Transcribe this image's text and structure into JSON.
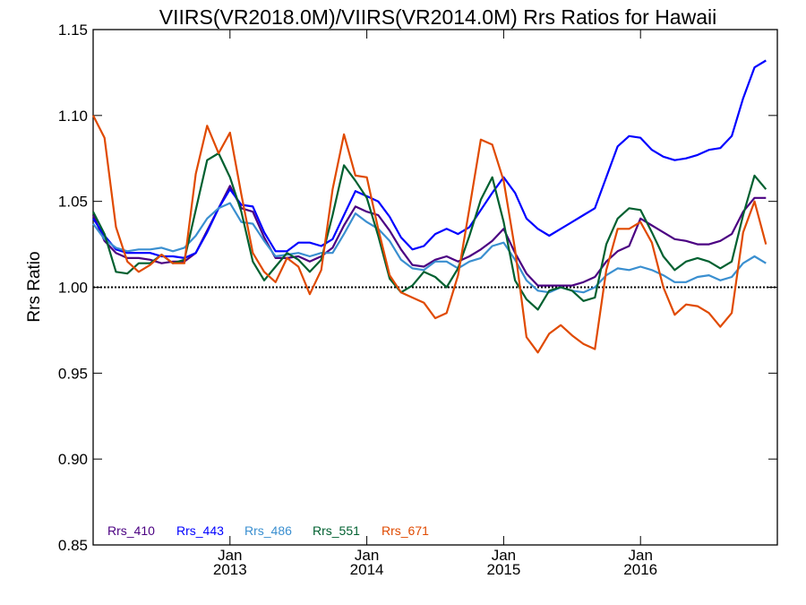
{
  "chart_data": {
    "type": "line",
    "title": "VIIRS(VR2018.0M)/VIIRS(VR2014.0M)  Rrs Ratios for Hawaii",
    "xlabel": "",
    "ylabel": "Rrs Ratio",
    "ylim": [
      0.85,
      1.15
    ],
    "yticks": [
      "0.85",
      "0.90",
      "0.95",
      "1.00",
      "1.05",
      "1.10",
      "1.15"
    ],
    "xticks": [
      {
        "month": "Jan",
        "year": "2013"
      },
      {
        "month": "Jan",
        "year": "2014"
      },
      {
        "month": "Jan",
        "year": "2015"
      },
      {
        "month": "Jan",
        "year": "2016"
      }
    ],
    "xlim": [
      "2012-01",
      "2017-01"
    ],
    "reference_line": 1.0,
    "legend_position": "bottom-left",
    "x": [
      "2012-01",
      "2012-02",
      "2012-03",
      "2012-04",
      "2012-05",
      "2012-06",
      "2012-07",
      "2012-08",
      "2012-09",
      "2012-10",
      "2012-11",
      "2012-12",
      "2013-01",
      "2013-02",
      "2013-03",
      "2013-04",
      "2013-05",
      "2013-06",
      "2013-07",
      "2013-08",
      "2013-09",
      "2013-10",
      "2013-11",
      "2013-12",
      "2014-01",
      "2014-02",
      "2014-03",
      "2014-04",
      "2014-05",
      "2014-06",
      "2014-07",
      "2014-08",
      "2014-09",
      "2014-10",
      "2014-11",
      "2014-12",
      "2015-01",
      "2015-02",
      "2015-03",
      "2015-04",
      "2015-05",
      "2015-06",
      "2015-07",
      "2015-08",
      "2015-09",
      "2015-10",
      "2015-11",
      "2015-12",
      "2016-01",
      "2016-02",
      "2016-03",
      "2016-04",
      "2016-05",
      "2016-06",
      "2016-07",
      "2016-08",
      "2016-09",
      "2016-10",
      "2016-11",
      "2016-12",
      "2017-01"
    ],
    "series": [
      {
        "name": "Rrs_410",
        "color": "#4b0082",
        "values": [
          1.042,
          1.027,
          1.02,
          1.017,
          1.017,
          1.016,
          1.014,
          1.015,
          1.015,
          1.02,
          1.033,
          1.046,
          1.059,
          1.046,
          1.044,
          1.029,
          1.017,
          1.017,
          1.018,
          1.015,
          1.018,
          1.023,
          1.036,
          1.047,
          1.044,
          1.042,
          1.033,
          1.022,
          1.013,
          1.012,
          1.016,
          1.018,
          1.015,
          1.018,
          1.022,
          1.027,
          1.034,
          1.02,
          1.008,
          1.001,
          1.001,
          1.001,
          1.001,
          1.003,
          1.006,
          1.015,
          1.021,
          1.024,
          1.04,
          1.036,
          1.032,
          1.028,
          1.027,
          1.025,
          1.025,
          1.027,
          1.031,
          1.044,
          1.052,
          1.052,
          null
        ]
      },
      {
        "name": "Rrs_443",
        "color": "#0000ff",
        "values": [
          1.04,
          1.03,
          1.022,
          1.02,
          1.02,
          1.02,
          1.018,
          1.018,
          1.017,
          1.02,
          1.032,
          1.046,
          1.057,
          1.048,
          1.047,
          1.032,
          1.021,
          1.021,
          1.026,
          1.026,
          1.024,
          1.028,
          1.042,
          1.056,
          1.053,
          1.05,
          1.041,
          1.029,
          1.022,
          1.024,
          1.031,
          1.034,
          1.031,
          1.035,
          1.045,
          1.055,
          1.064,
          1.055,
          1.04,
          1.034,
          1.03,
          1.034,
          1.038,
          1.042,
          1.046,
          1.064,
          1.082,
          1.088,
          1.087,
          1.08,
          1.076,
          1.074,
          1.075,
          1.077,
          1.08,
          1.081,
          1.088,
          1.11,
          1.128,
          1.132,
          null
        ]
      },
      {
        "name": "Rrs_486",
        "color": "#3a8fd0",
        "values": [
          1.037,
          1.028,
          1.023,
          1.021,
          1.022,
          1.022,
          1.023,
          1.021,
          1.023,
          1.03,
          1.04,
          1.046,
          1.049,
          1.038,
          1.037,
          1.027,
          1.018,
          1.019,
          1.02,
          1.018,
          1.02,
          1.02,
          1.031,
          1.043,
          1.038,
          1.034,
          1.027,
          1.016,
          1.011,
          1.01,
          1.015,
          1.015,
          1.011,
          1.015,
          1.017,
          1.024,
          1.026,
          1.016,
          1.004,
          0.998,
          0.997,
          1.0,
          0.998,
          0.997,
          1.0,
          1.007,
          1.011,
          1.01,
          1.012,
          1.01,
          1.007,
          1.003,
          1.003,
          1.006,
          1.007,
          1.004,
          1.006,
          1.014,
          1.018,
          1.014,
          null
        ]
      },
      {
        "name": "Rrs_551",
        "color": "#006030",
        "values": [
          1.044,
          1.031,
          1.009,
          1.008,
          1.014,
          1.014,
          1.019,
          1.014,
          1.016,
          1.045,
          1.074,
          1.078,
          1.064,
          1.044,
          1.015,
          1.004,
          1.012,
          1.02,
          1.016,
          1.009,
          1.016,
          1.042,
          1.071,
          1.062,
          1.052,
          1.03,
          1.005,
          0.997,
          1.001,
          1.009,
          1.006,
          1.0,
          1.011,
          1.03,
          1.051,
          1.064,
          1.038,
          1.004,
          0.993,
          0.987,
          0.998,
          1.0,
          0.998,
          0.992,
          0.994,
          1.025,
          1.04,
          1.046,
          1.045,
          1.032,
          1.018,
          1.01,
          1.015,
          1.017,
          1.015,
          1.011,
          1.015,
          1.042,
          1.065,
          1.057,
          null
        ]
      },
      {
        "name": "Rrs_671",
        "color": "#e04a00",
        "values": [
          1.1,
          1.087,
          1.035,
          1.015,
          1.009,
          1.013,
          1.019,
          1.014,
          1.014,
          1.066,
          1.094,
          1.078,
          1.09,
          1.054,
          1.02,
          1.009,
          1.003,
          1.017,
          1.012,
          0.996,
          1.01,
          1.057,
          1.089,
          1.065,
          1.064,
          1.034,
          1.007,
          0.997,
          0.994,
          0.991,
          0.982,
          0.985,
          1.007,
          1.046,
          1.086,
          1.083,
          1.062,
          1.022,
          0.971,
          0.962,
          0.973,
          0.978,
          0.972,
          0.967,
          0.964,
          1.01,
          1.034,
          1.034,
          1.038,
          1.026,
          1.0,
          0.984,
          0.99,
          0.989,
          0.985,
          0.977,
          0.985,
          1.032,
          1.05,
          1.025,
          null
        ]
      }
    ]
  }
}
